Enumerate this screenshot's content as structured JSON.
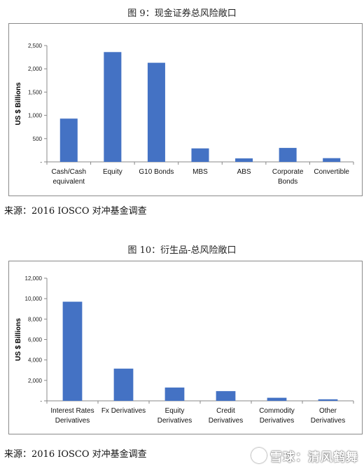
{
  "figure1": {
    "caption": "图 9：现金证券总风险敞口",
    "source": "来源：2016 IOSCO 对冲基金调查"
  },
  "figure2": {
    "caption": "图 10：衍生品-总风险敞口",
    "source": "来源：2016 IOSCO 对冲基金调查"
  },
  "watermark": "雪球：清风鹤舞",
  "colors": {
    "bar": "#4472c4",
    "axis": "#888888",
    "panel_border": "#8a8a8a"
  },
  "chart_data": [
    {
      "type": "bar",
      "title": "",
      "xlabel": "",
      "ylabel": "US $ Billions",
      "ylim": [
        0,
        2500
      ],
      "yticks": [
        "-",
        "500",
        "1,000",
        "1,500",
        "2,000",
        "2,500"
      ],
      "ytick_values": [
        0,
        500,
        1000,
        1500,
        2000,
        2500
      ],
      "categories": [
        [
          "Cash/Cash",
          "equivalent"
        ],
        [
          "Equity"
        ],
        [
          "G10 Bonds"
        ],
        [
          "MBS"
        ],
        [
          "ABS"
        ],
        [
          "Corporate",
          "Bonds"
        ],
        [
          "Convertible"
        ]
      ],
      "values": [
        930,
        2360,
        2130,
        290,
        75,
        300,
        80
      ],
      "grid": false,
      "legend": "none"
    },
    {
      "type": "bar",
      "title": "",
      "xlabel": "",
      "ylabel": "US $ Billions",
      "ylim": [
        0,
        12000
      ],
      "yticks": [
        "-",
        "2,000",
        "4,000",
        "6,000",
        "8,000",
        "10,000",
        "12,000"
      ],
      "ytick_values": [
        0,
        2000,
        4000,
        6000,
        8000,
        10000,
        12000
      ],
      "categories": [
        [
          "Interest Rates",
          "Derivatives"
        ],
        [
          "Fx Derivatives"
        ],
        [
          "Equity",
          "Derivatives"
        ],
        [
          "Credit",
          "Derivatives"
        ],
        [
          "Commodity",
          "Derivatives"
        ],
        [
          "Other",
          "Derivatives"
        ]
      ],
      "values": [
        9700,
        3150,
        1300,
        950,
        300,
        150
      ],
      "grid": false,
      "legend": "none"
    }
  ]
}
